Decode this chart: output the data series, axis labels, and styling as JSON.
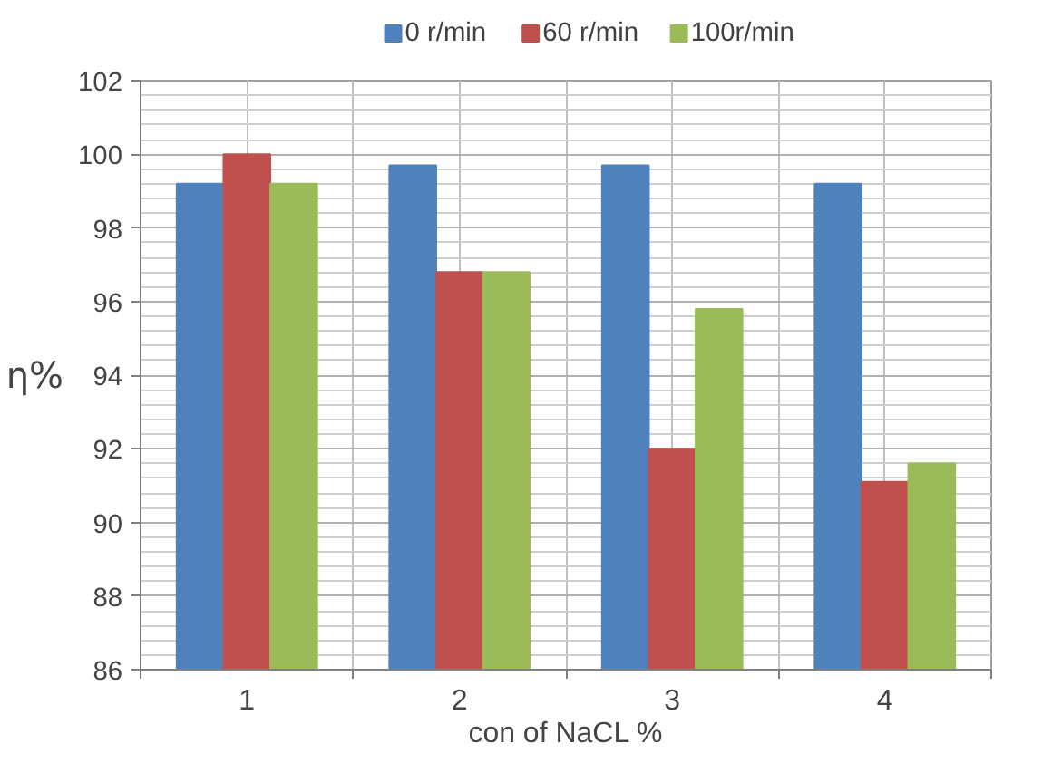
{
  "chart_data": {
    "type": "bar",
    "xlabel": "con of NaCL %",
    "ylabel": "η%",
    "categories": [
      "1",
      "2",
      "3",
      "4"
    ],
    "series": [
      {
        "name": "0 r/min",
        "color": "#4f81bd",
        "values": [
          99.2,
          99.7,
          99.7,
          99.2
        ]
      },
      {
        "name": "60 r/min",
        "color": "#c0504d",
        "values": [
          100.0,
          96.8,
          92.0,
          91.1
        ]
      },
      {
        "name": "100r/min",
        "color": "#9bbb59",
        "values": [
          99.2,
          96.8,
          95.8,
          91.6
        ]
      }
    ],
    "ylim": [
      86,
      102
    ],
    "yticks": [
      86,
      88,
      90,
      92,
      94,
      96,
      98,
      100,
      102
    ],
    "grid": true,
    "legend": "top"
  }
}
